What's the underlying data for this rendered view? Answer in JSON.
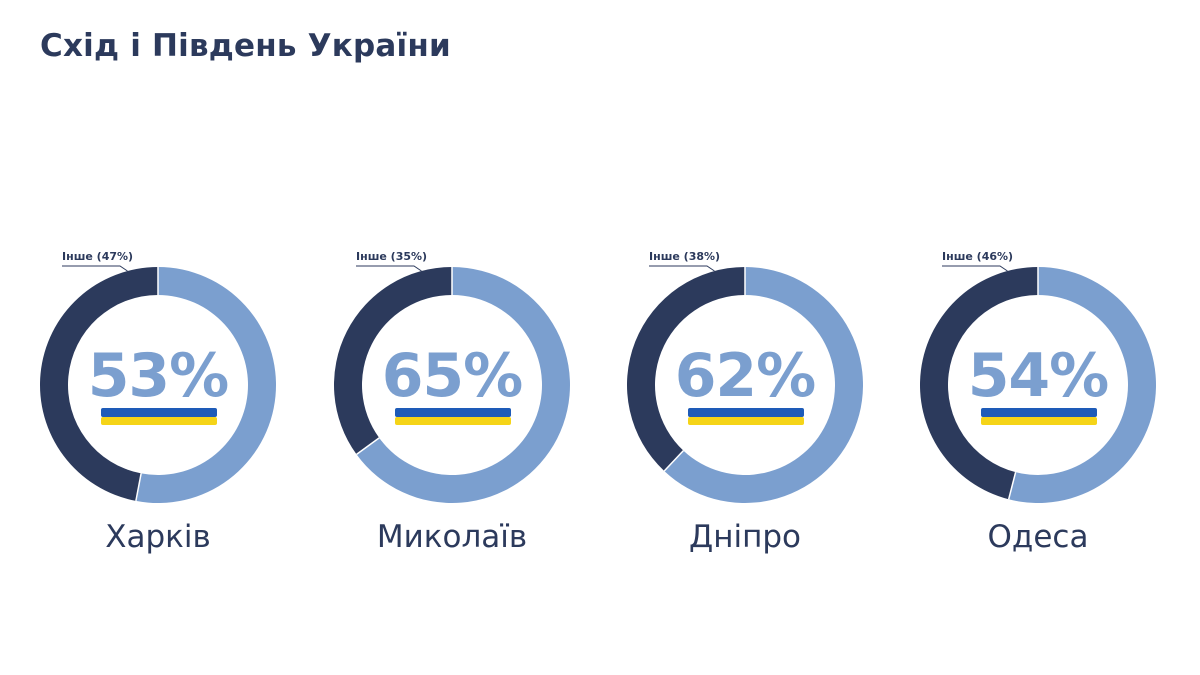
{
  "title": "Схід і Південь України",
  "colors": {
    "main": "#7b9fcf",
    "other": "#2c3a5c",
    "flag_blue": "#1e5bb8",
    "flag_yellow": "#f5d418",
    "text": "#2c3a5c"
  },
  "chart_data": [
    {
      "type": "pie",
      "city": "Харків",
      "main_value": 53,
      "main_label": "53%",
      "other_value": 47,
      "other_label": "Інше (47%)"
    },
    {
      "type": "pie",
      "city": "Миколаїв",
      "main_value": 65,
      "main_label": "65%",
      "other_value": 35,
      "other_label": "Інше (35%)"
    },
    {
      "type": "pie",
      "city": "Дніпро",
      "main_value": 62,
      "main_label": "62%",
      "other_value": 38,
      "other_label": "Інше (38%)"
    },
    {
      "type": "pie",
      "city": "Одеса",
      "main_value": 54,
      "main_label": "54%",
      "other_value": 46,
      "other_label": "Інше (46%)"
    }
  ]
}
